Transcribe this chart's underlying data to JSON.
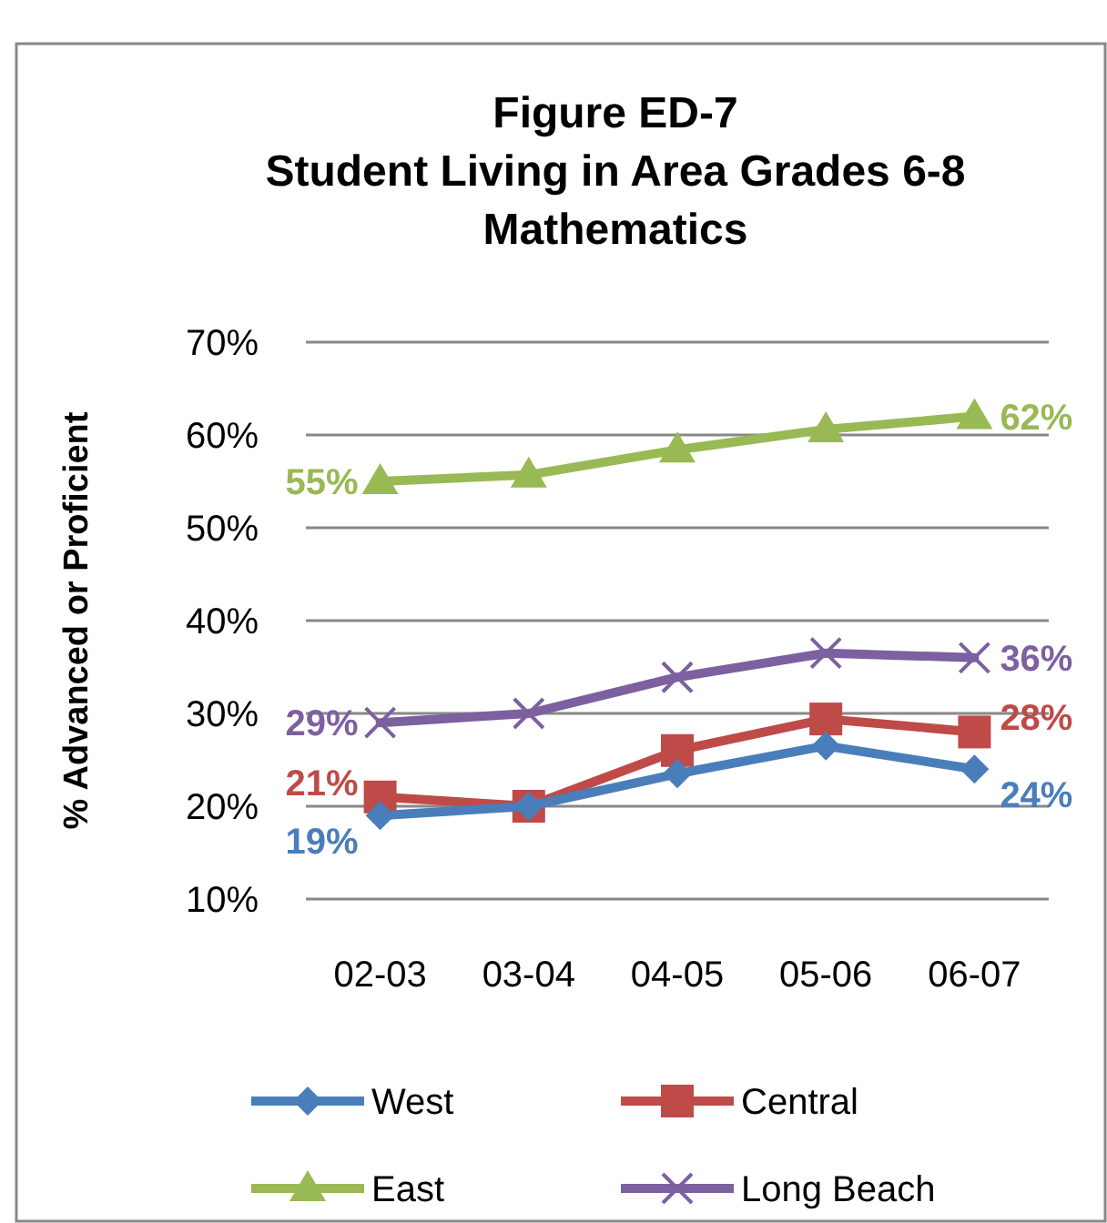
{
  "chart_data": {
    "type": "line",
    "title": "Figure ED-7\nStudent Living in Area Grades 6-8\nMathematics",
    "ylabel": "% Advanced or Proficient",
    "categories": [
      "02-03",
      "03-04",
      "04-05",
      "05-06",
      "06-07"
    ],
    "series": [
      {
        "name": "West",
        "color": "#4a7ebb",
        "marker": "diamond",
        "values": [
          19,
          20,
          23.5,
          26.5,
          24
        ],
        "value_labels": [
          "19%",
          null,
          null,
          null,
          "24%"
        ]
      },
      {
        "name": "Central",
        "color": "#be4b48",
        "marker": "square",
        "values": [
          21,
          20,
          26,
          29.4,
          28
        ],
        "value_labels": [
          "21%",
          null,
          null,
          null,
          "28%"
        ]
      },
      {
        "name": "East",
        "color": "#98b954",
        "marker": "triangle",
        "values": [
          55,
          55.7,
          58.4,
          60.6,
          62
        ],
        "value_labels": [
          "55%",
          null,
          null,
          null,
          "62%"
        ]
      },
      {
        "name": "Long Beach",
        "color": "#7d60a0",
        "marker": "cross",
        "values": [
          29,
          30,
          33.9,
          36.5,
          36
        ],
        "value_labels": [
          "29%",
          null,
          null,
          null,
          "36%"
        ]
      }
    ],
    "ylim": [
      10,
      70
    ],
    "yticks": [
      {
        "value": 10,
        "label": "10%"
      },
      {
        "value": 20,
        "label": "20%"
      },
      {
        "value": 30,
        "label": "30%"
      },
      {
        "value": 40,
        "label": "40%"
      },
      {
        "value": 50,
        "label": "50%"
      },
      {
        "value": 60,
        "label": "60%"
      },
      {
        "value": 70,
        "label": "70%"
      }
    ],
    "grid": "y",
    "legend": "bottom",
    "line_style": "solid"
  }
}
